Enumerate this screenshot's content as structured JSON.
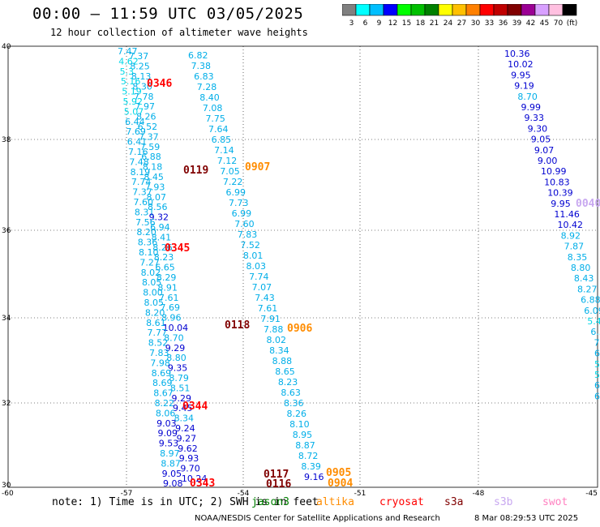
{
  "title": "00:00 – 11:59 UTC 03/05/2025",
  "subtitle": "12 hour collection of altimeter wave heights",
  "legend": {
    "colors": [
      "#808080",
      "#00ffff",
      "#00bfff",
      "#0000ff",
      "#00ff00",
      "#00c000",
      "#008000",
      "#ffff00",
      "#ffc000",
      "#ff8000",
      "#ff0000",
      "#c00000",
      "#800000",
      "#9b0094",
      "#d8a0ff",
      "#ffc0e0",
      "#000000"
    ],
    "labels": [
      "3",
      "6",
      "9",
      "12",
      "15",
      "18",
      "21",
      "24",
      "27",
      "30",
      "33",
      "36",
      "39",
      "42",
      "45",
      "70",
      "(ft)"
    ]
  },
  "axes": {
    "lon_ticks": [
      "-60",
      "-57",
      "-54",
      "-51",
      "-48",
      "-45"
    ],
    "lat_ticks": [
      "40",
      "38",
      "36",
      "34",
      "32",
      "30"
    ]
  },
  "passes": [
    {
      "time": "0346",
      "color": "#ff0000",
      "values": []
    },
    {
      "time": "0119",
      "color": "#800000",
      "values": []
    },
    {
      "time": "0907",
      "color": "#ff8c00",
      "values": []
    },
    {
      "time": "0345",
      "color": "#ff0000",
      "values": []
    },
    {
      "time": "0118",
      "color": "#800000",
      "values": []
    },
    {
      "time": "0906",
      "color": "#ff8c00",
      "values": []
    },
    {
      "time": "0344",
      "color": "#ff0000",
      "values": []
    },
    {
      "time": "0117",
      "color": "#800000",
      "values": []
    },
    {
      "time": "0343",
      "color": "#ff0000",
      "values": []
    },
    {
      "time": "0116",
      "color": "#800000",
      "values": []
    },
    {
      "time": "0905",
      "color": "#ff8c00",
      "values": []
    },
    {
      "time": "0904",
      "color": "#ff8c00",
      "values": []
    },
    {
      "time": "0040",
      "color": "#c8a8f0",
      "values": []
    }
  ],
  "tracks": {
    "track_a": [
      "7.47",
      "7.37",
      "4.62",
      "8.25",
      "5.3",
      "8.13",
      "5.16",
      "8.30",
      "5.19",
      "7.78",
      "5.92",
      "7.97",
      "5.07",
      "8.26",
      "6.44",
      "6.52",
      "7.69",
      "7.37",
      "6.41",
      "7.59",
      "7.16",
      "6.88",
      "7.48",
      "8.18",
      "8.19",
      "8.45",
      "7.74",
      "7.93",
      "7.37",
      "8.07",
      "7.60",
      "8.56",
      "8.31",
      "9.32",
      "7.56",
      "6.94",
      "8.20",
      "8.41",
      "8.36",
      "8.26",
      "8.10",
      "8.23",
      "7.27",
      "6.65",
      "8.02",
      "8.29",
      "8.05",
      "8.91",
      "8.00",
      "7.61",
      "8.05",
      "7.69",
      "8.20",
      "8.96",
      "8.61",
      "10.04",
      "7.77",
      "8.70",
      "8.52",
      "9.29",
      "7.83",
      "8.80",
      "7.98",
      "9.35",
      "8.69",
      "8.79",
      "8.69",
      "8.51",
      "8.67",
      "9.29",
      "8.22",
      "9.45",
      "8.06",
      "8.34",
      "9.03",
      "9.24",
      "9.09",
      "9.27",
      "9.53",
      "9.62",
      "8.97",
      "9.93",
      "8.87",
      "9.70",
      "9.05",
      "10.24",
      "9.08"
    ],
    "track_b": [
      "6.82",
      "7.38",
      "6.83",
      "7.28",
      "8.40",
      "7.08",
      "7.75",
      "7.64",
      "6.85",
      "7.14",
      "7.12",
      "7.05",
      "7.22",
      "6.99",
      "7.73",
      "6.99",
      "7.60",
      "7.83",
      "7.52",
      "8.01",
      "8.03",
      "7.74",
      "7.07",
      "7.43",
      "7.61",
      "7.91",
      "7.88",
      "8.02",
      "8.34",
      "8.88",
      "8.65",
      "8.23",
      "8.63",
      "8.36",
      "8.26",
      "8.10",
      "8.95",
      "8.87",
      "8.72",
      "8.39",
      "9.16"
    ],
    "track_c": [
      "10.36",
      "10.02",
      "9.95",
      "9.19",
      "8.70",
      "9.99",
      "9.33",
      "9.30",
      "9.05",
      "9.07",
      "9.00",
      "10.99",
      "10.83",
      "10.39",
      "9.95",
      "11.46",
      "10.42",
      "8.92",
      "7.87",
      "8.35",
      "8.80",
      "8.43",
      "8.27",
      "6.88",
      "6.09",
      "5.47",
      "6.52",
      "7.28",
      "6.4",
      "5.4",
      "5.",
      "6.",
      "6"
    ]
  },
  "note": "note: 1) Time is in UTC; 2) SWH is in feet",
  "satellites": [
    {
      "name": "jason3",
      "color": "#008000"
    },
    {
      "name": "altika",
      "color": "#ff8c00"
    },
    {
      "name": "cryosat",
      "color": "#ff0000"
    },
    {
      "name": "s3a",
      "color": "#800000"
    },
    {
      "name": "s3b",
      "color": "#c8a8f0"
    },
    {
      "name": "swot",
      "color": "#ff80c0"
    }
  ],
  "credit": "NOAA/NESDIS Center for Satellite Applications and Research",
  "timestamp": "8 Mar 08:29:53 UTC 2025"
}
